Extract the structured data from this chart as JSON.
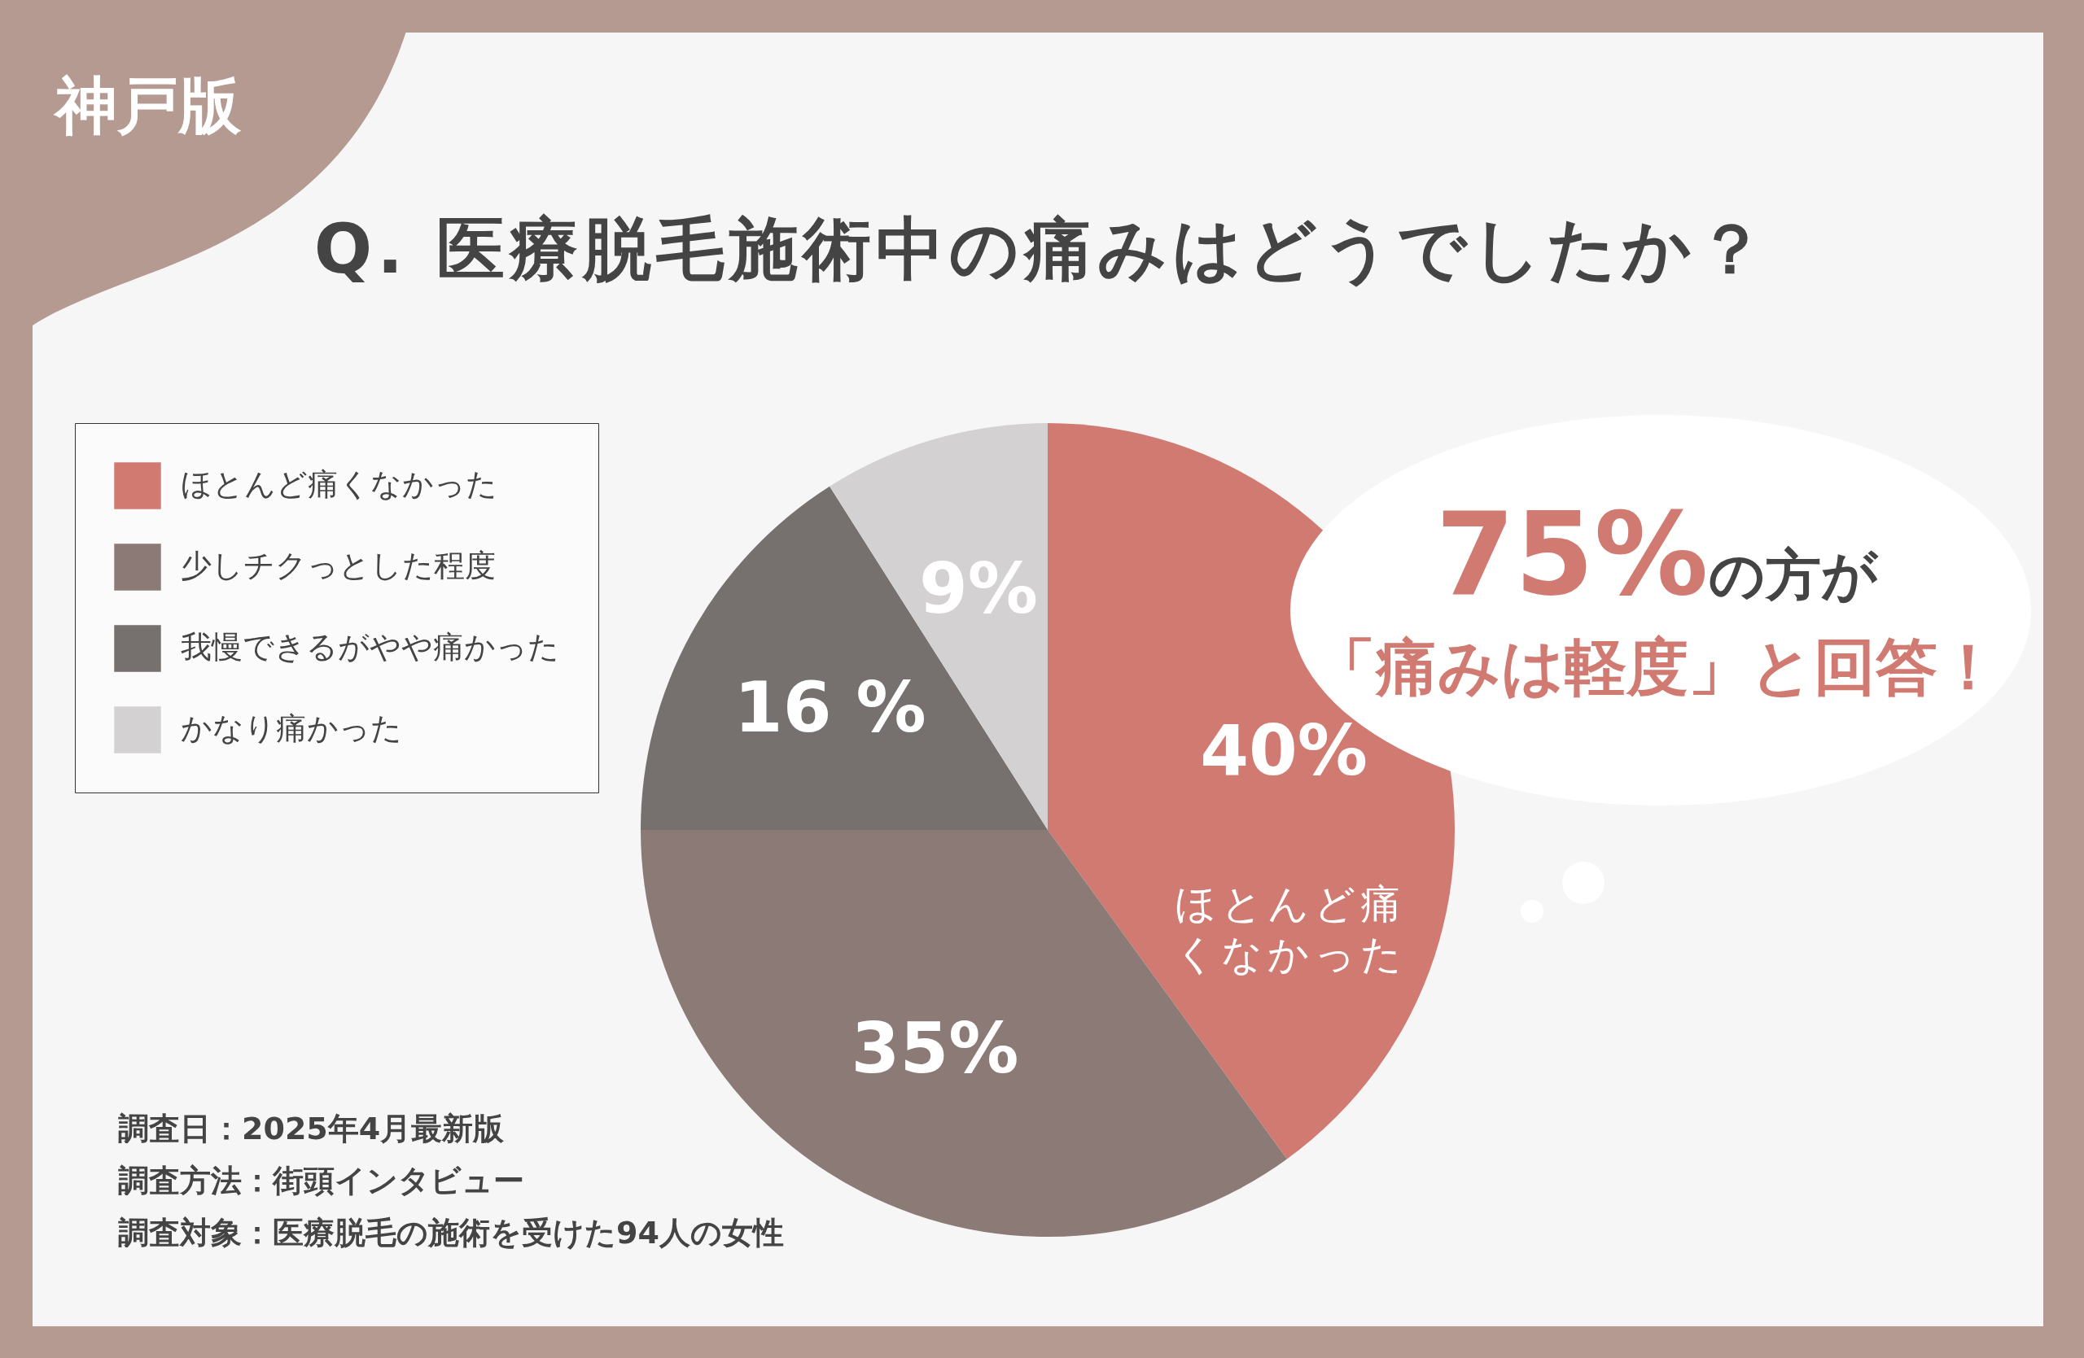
{
  "chart_data": {
    "type": "pie",
    "title": "Q. 医療脱毛施術中の痛みはどうでしたか？",
    "categories": [
      "ほとんど痛くなかった",
      "少しチクっとした程度",
      "我慢できるがやや痛かった",
      "かなり痛かった"
    ],
    "values": [
      40,
      35,
      16,
      9
    ],
    "colors": [
      "#d07a72",
      "#8c7a77",
      "#76716f",
      "#d3d1d1"
    ],
    "value_labels": [
      "40%",
      "35%",
      "16 %",
      "9%"
    ],
    "legend": "left",
    "annotations": [
      "神戸版",
      "75%の方が",
      "「痛みは軽度」と回答！",
      "ほとんど痛くなかった",
      "調査日：2025年4月最新版",
      "調査方法：街頭インタビュー",
      "調査対象：医療脱毛の施術を受けた94人の女性"
    ]
  }
}
